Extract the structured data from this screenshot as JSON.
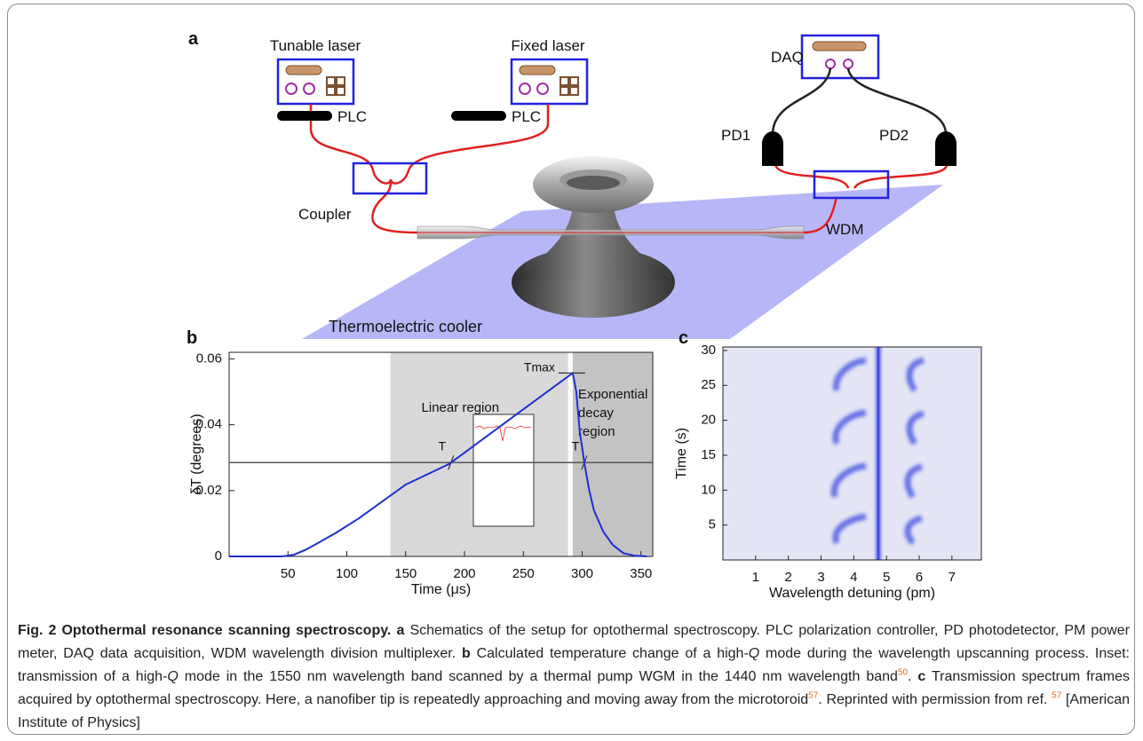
{
  "panel_a": {
    "panel": "a",
    "tunable_laser": "Tunable laser",
    "fixed_laser": "Fixed laser",
    "plc_1": "PLC",
    "plc_2": "PLC",
    "coupler": "Coupler",
    "daq": "DAQ",
    "pd1": "PD1",
    "pd2": "PD2",
    "wdm": "WDM",
    "cooler": "Thermoelectric cooler"
  },
  "chart_data": [
    {
      "type": "line",
      "panel": "b",
      "x_label": "Time (μs)",
      "y_label": "δT (degrees)",
      "x": [
        0,
        45,
        55,
        65,
        75,
        90,
        110,
        150,
        187,
        250,
        290,
        292,
        295,
        298,
        302,
        306,
        310,
        318,
        326,
        335,
        345,
        355
      ],
      "values": [
        0,
        0,
        0.0005,
        0.002,
        0.004,
        0.007,
        0.0115,
        0.0218,
        0.0281,
        0.0447,
        0.0552,
        0.0557,
        0.05,
        0.038,
        0.028,
        0.02,
        0.014,
        0.0075,
        0.0035,
        0.001,
        0.0002,
        0
      ],
      "color": "#1f2fd0",
      "xlim": [
        0,
        360
      ],
      "ylim": [
        0,
        0.062
      ],
      "xticks": [
        50,
        100,
        150,
        200,
        250,
        300,
        350
      ],
      "yticks": [
        0,
        0.02,
        0.04,
        0.06
      ],
      "regions": [
        {
          "label_lines": [
            "Linear region"
          ],
          "x0": 137,
          "x1": 288,
          "color": "#d9d9d9"
        },
        {
          "label_lines": [
            "Exponential",
            "decay",
            "region"
          ],
          "x0": 292,
          "x1": 360,
          "color": "#c3c3c3"
        }
      ],
      "threshold": {
        "value": 0.0285,
        "label": "T"
      },
      "peak": {
        "value": 0.0557,
        "label": "Tmax"
      }
    },
    {
      "type": "heatmap",
      "panel": "c",
      "x_label": "Wavelength detuning (pm)",
      "y_label": "Time (s)",
      "xlim": [
        0,
        7.9
      ],
      "ylim": [
        0,
        30.5
      ],
      "xticks": [
        1,
        2,
        3,
        4,
        5,
        6,
        7
      ],
      "yticks": [
        5,
        10,
        15,
        20,
        25,
        30
      ]
    }
  ],
  "caption": {
    "title": "Fig. 2 Optothermal resonance scanning spectroscopy.",
    "a": "a",
    "a_text": "Schematics of the setup for optothermal spectroscopy. PLC polarization controller, PD photodetector, PM power meter, DAQ data acquisition, WDM wavelength division multiplexer.",
    "b": "b",
    "b_text_1": "Calculated temperature change of a high-",
    "q_1": "Q",
    "b_text_2": "mode during the wavelength upscanning process. Inset: transmission of a high-",
    "q_2": "Q",
    "b_text_3": "mode in the 1550 nm wavelength band scanned by a thermal pump WGM in the 1440 nm wavelength band",
    "ref_1": "50",
    "c": "c",
    "c_text_1": "Transmission spectrum frames acquired by optothermal spectroscopy. Here, a nanofiber tip is repeatedly approaching and moving away from the microtoroid",
    "ref_2": "57",
    "c_text_2": "Reprinted with permission from ref.",
    "ref_3": "57",
    "c_text_3": "[American Institute of Physics]"
  }
}
